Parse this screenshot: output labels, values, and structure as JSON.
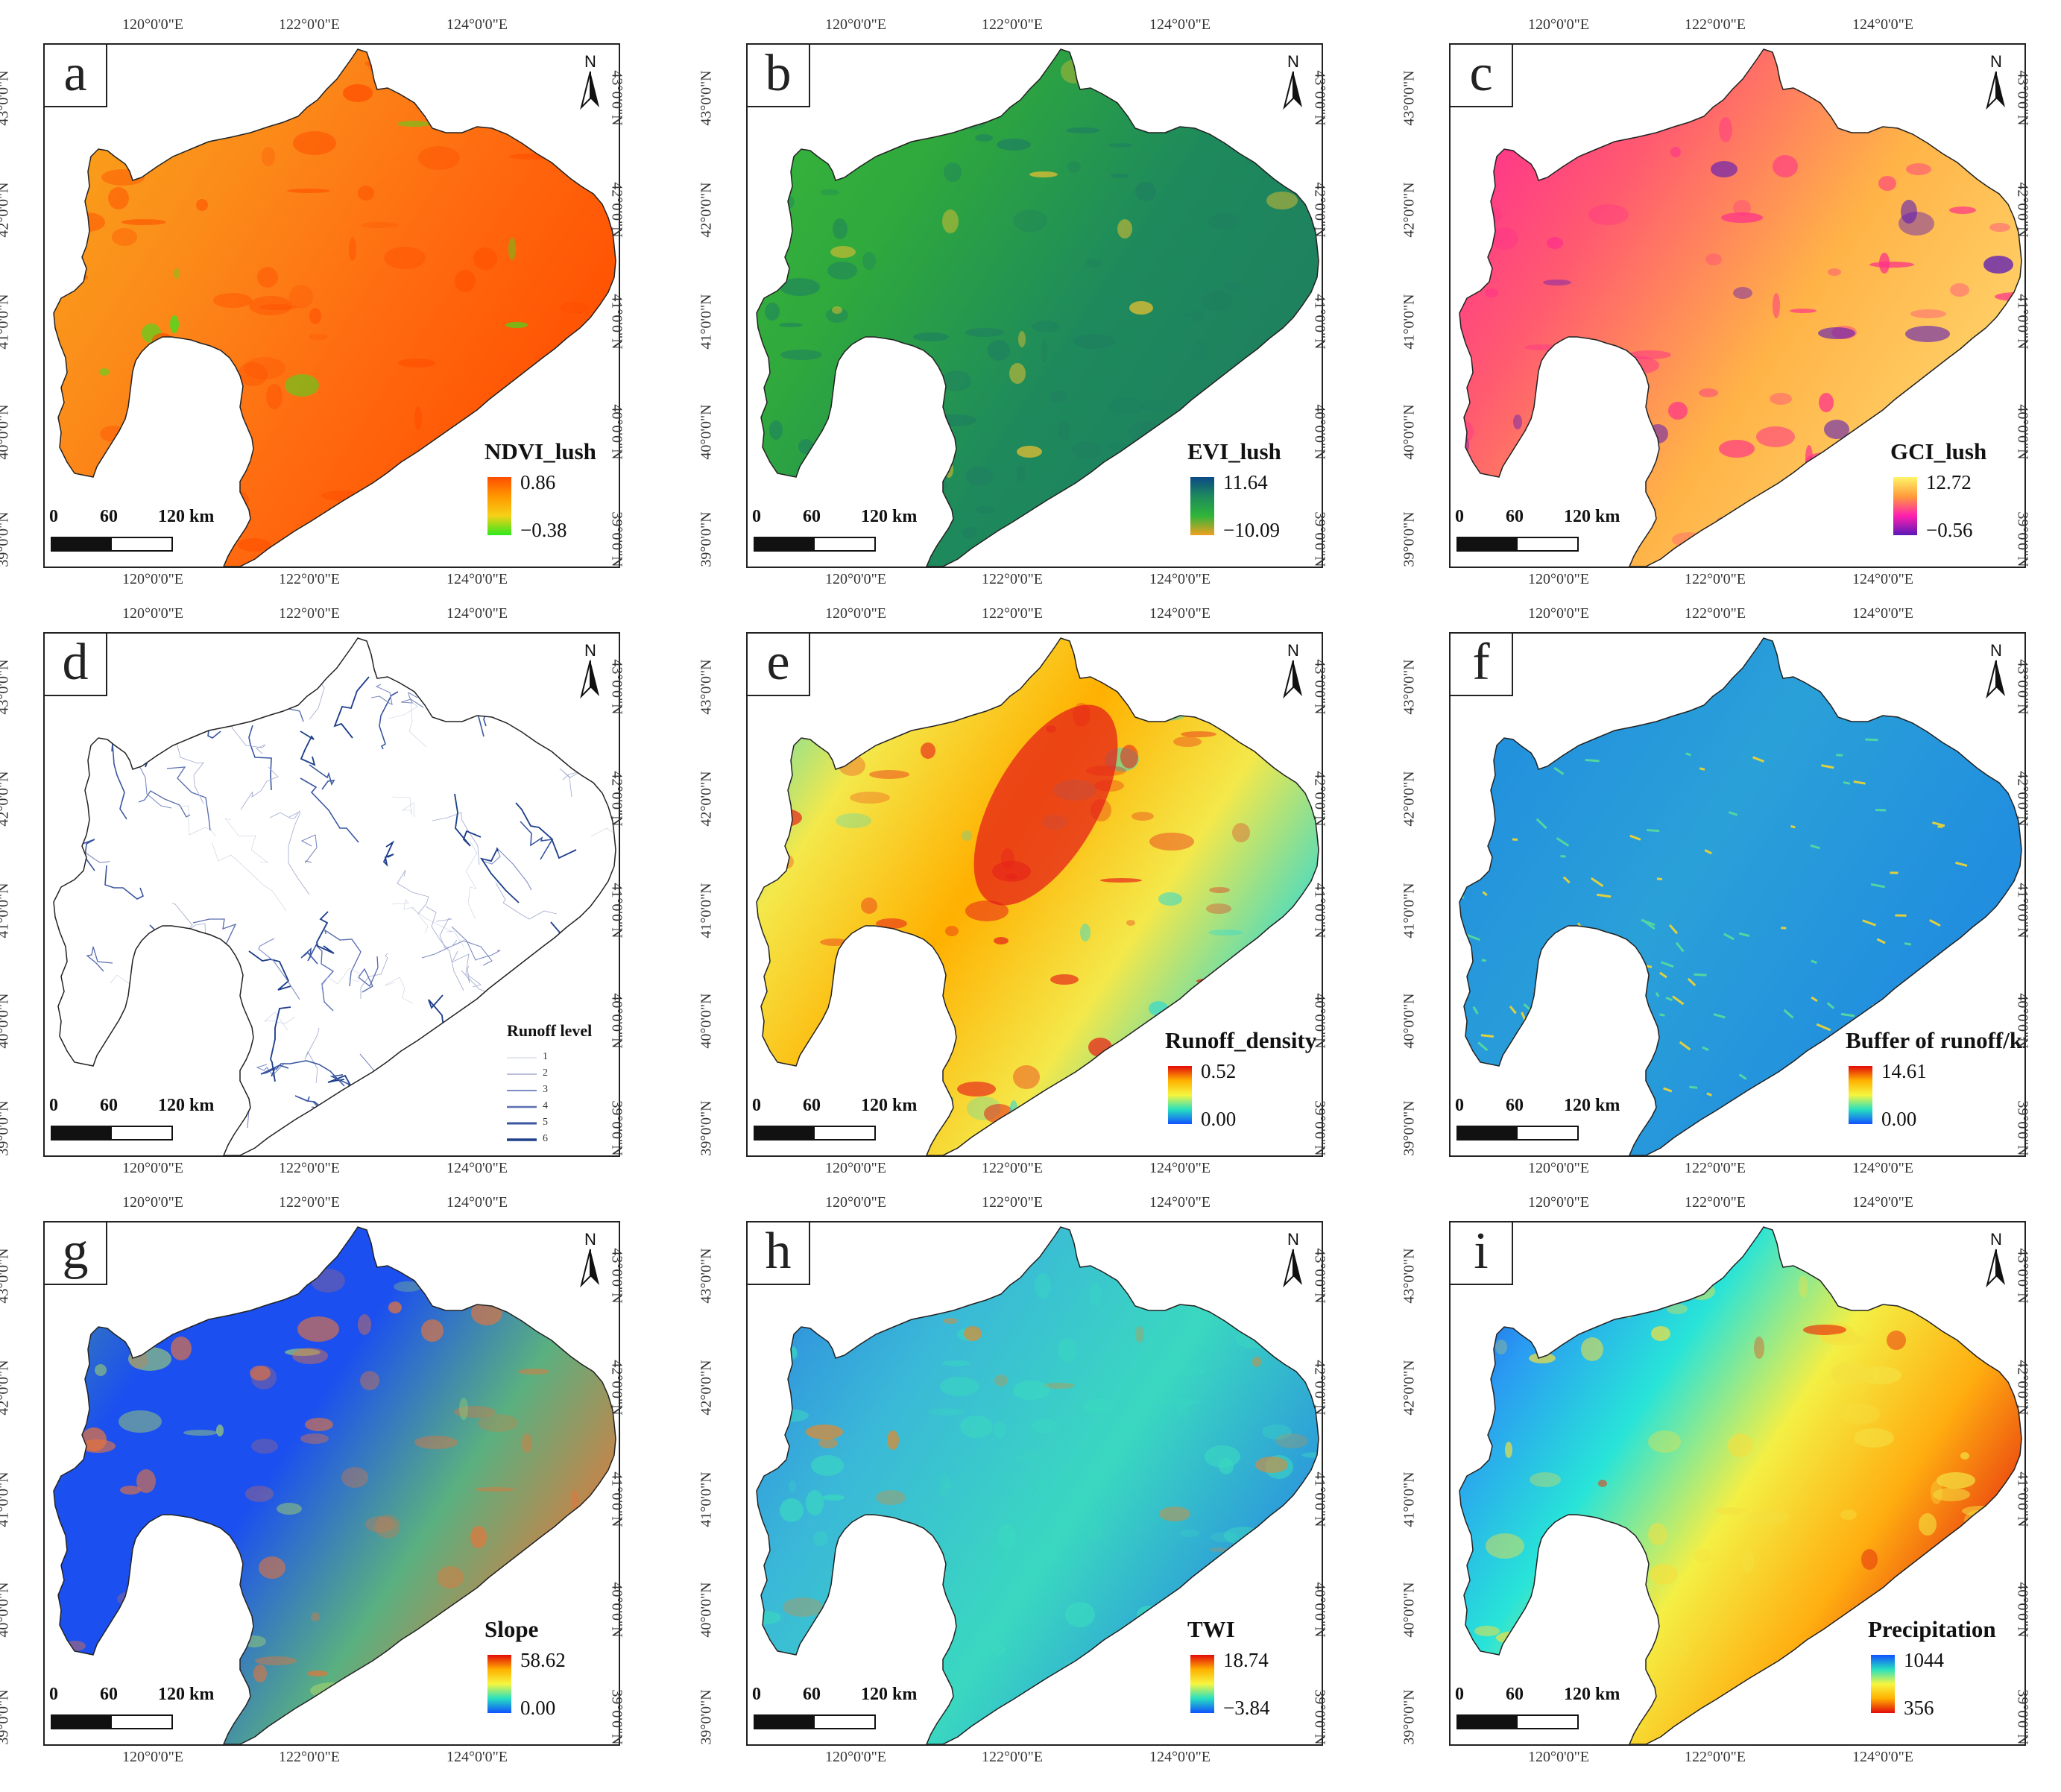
{
  "panels": [
    {
      "letter": "a",
      "legend_title": "NDVI_lush",
      "max": "0.86",
      "min": "−0.38",
      "colors": [
        "#ff4e00",
        "#ff9800",
        "#f6d117",
        "#2ee81e"
      ],
      "base": "#fb8d1a",
      "accent": "#ff4e00",
      "spot": "#2ee81e"
    },
    {
      "letter": "b",
      "legend_title": "EVI_lush",
      "max": "11.64",
      "min": "−10.09",
      "colors": [
        "#0b4a86",
        "#1e8a5c",
        "#2fb53a",
        "#f0a020"
      ],
      "base": "#2fa83d",
      "accent": "#1e7f60",
      "spot": "#e8c030"
    },
    {
      "letter": "c",
      "legend_title": "GCI_lush",
      "max": "12.72",
      "min": "−0.56",
      "colors": [
        "#fff46a",
        "#ff9b3a",
        "#ff1fb0",
        "#5a18b8"
      ],
      "base": "#ffb347",
      "accent": "#ff2f8a",
      "spot": "#5a18b8"
    },
    {
      "letter": "d",
      "legend_title": "",
      "max": "",
      "min": "",
      "colors": [],
      "base": "#ffffff",
      "accent": "#4d6aa8",
      "spot": "#2a3f7a"
    },
    {
      "letter": "e",
      "legend_title": "Runoff_density",
      "max": "0.52",
      "min": "0.00",
      "colors": [
        "#e20a0a",
        "#ffb000",
        "#f6f640",
        "#27e0c0",
        "#1050ff"
      ],
      "base": "#f4e84a",
      "accent": "#e6201a",
      "spot": "#28d8d8"
    },
    {
      "letter": "f",
      "legend_title": "Buffer of runoff/km",
      "max": "14.61",
      "min": "0.00",
      "colors": [
        "#e20a0a",
        "#ffb000",
        "#f6f640",
        "#27e0c0",
        "#1050ff"
      ],
      "base": "#1f8ae0",
      "accent": "#54d6a0",
      "spot": "#e0d040"
    },
    {
      "letter": "g",
      "legend_title": "Slope",
      "max": "58.62",
      "min": "0.00",
      "colors": [
        "#e20a0a",
        "#ffb000",
        "#f6f640",
        "#27e0c0",
        "#1050ff"
      ],
      "base": "#1b4ff0",
      "accent": "#e8743a",
      "spot": "#9cd070"
    },
    {
      "letter": "h",
      "legend_title": "TWI",
      "max": "18.74",
      "min": "−3.84",
      "colors": [
        "#e20a0a",
        "#ffb000",
        "#f6f640",
        "#27e0c0",
        "#1050ff"
      ],
      "base": "#2a8ee0",
      "accent": "#3ad8c0",
      "spot": "#e08a30"
    },
    {
      "letter": "i",
      "legend_title": "Precipitation",
      "max": "1044",
      "min": "356",
      "colors": [
        "#1050ff",
        "#27e0c0",
        "#f6f640",
        "#ffb000",
        "#e20a0a"
      ],
      "base": "#3aa0f0",
      "accent": "#f4e040",
      "spot": "#e83a10"
    }
  ],
  "axes": {
    "lon_ticks": [
      "120°0'0\"E",
      "122°0'0\"E",
      "124°0'0\"E"
    ],
    "lat_ticks": [
      "43°0'0\"N",
      "42°0'0\"N",
      "41°0'0\"N",
      "40°0'0\"N",
      "39°0'0\"N"
    ]
  },
  "scale_bar": {
    "zero": "0",
    "mid": "60",
    "end": "120 km"
  },
  "north_label": "N",
  "runoff_legend": {
    "title": "Runoff level",
    "levels": [
      "1",
      "2",
      "3",
      "4",
      "5",
      "6"
    ],
    "colors": [
      "#c8cde0",
      "#a3acd0",
      "#7d8cc0",
      "#5a6eb0",
      "#3a56a0",
      "#1f3f8c"
    ]
  }
}
